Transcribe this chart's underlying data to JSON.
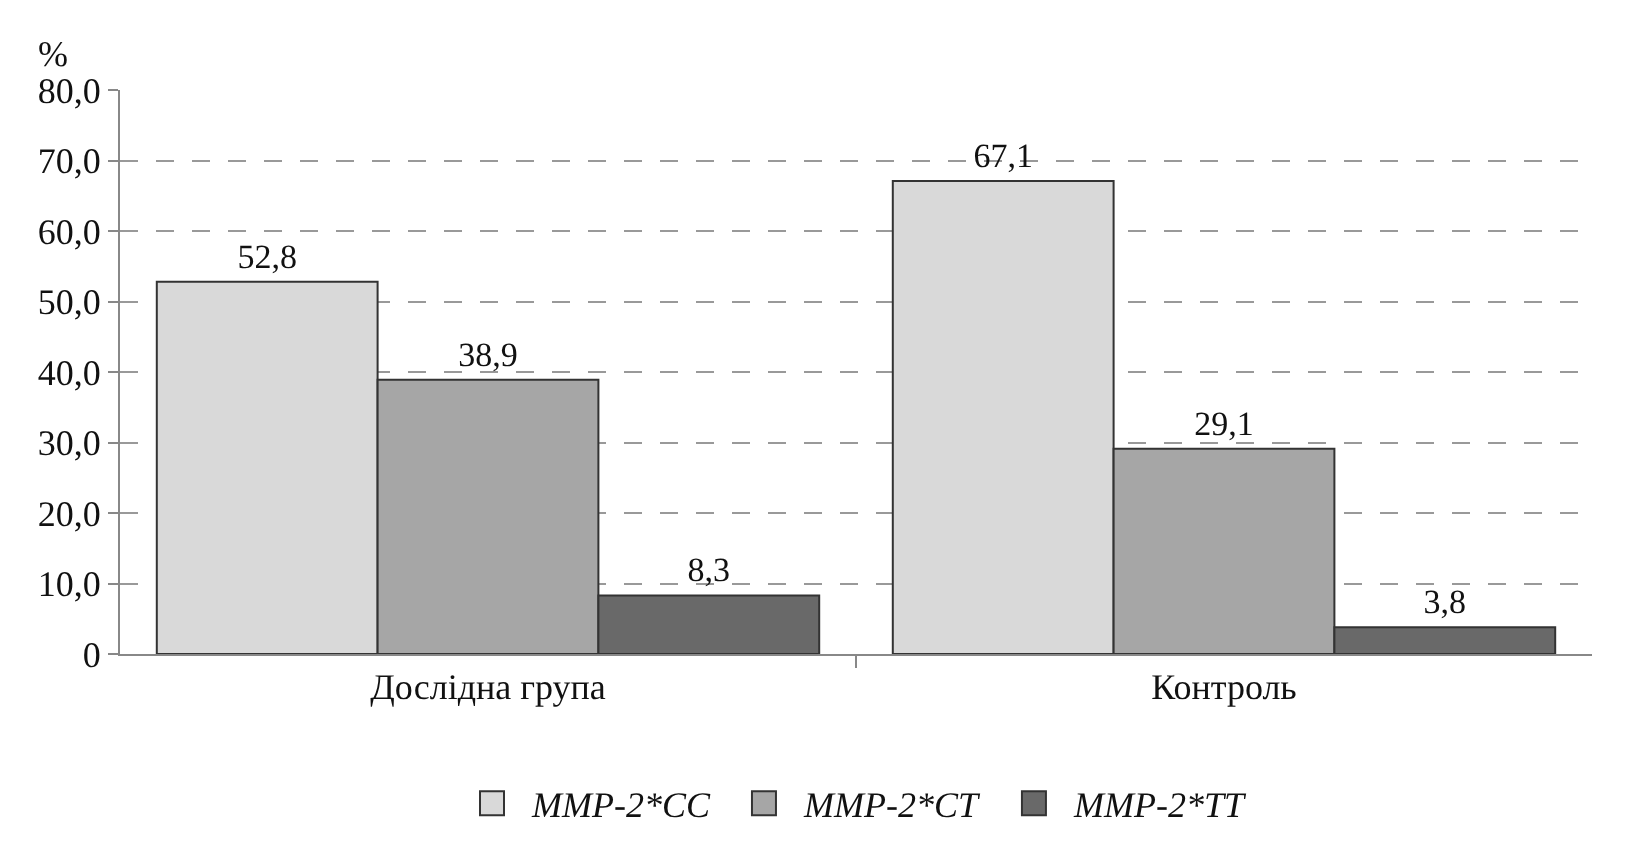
{
  "chart_data": {
    "type": "bar",
    "ylabel": "%",
    "categories": [
      "Дослідна група",
      "Контроль"
    ],
    "series": [
      {
        "name": "MMP-2*CC",
        "color": "#d9d9d9",
        "values": [
          52.8,
          67.1
        ],
        "value_labels": [
          "52,8",
          "67,1"
        ]
      },
      {
        "name": "MMP-2*CT",
        "color": "#a6a6a6",
        "values": [
          38.9,
          29.1
        ],
        "value_labels": [
          "38,9",
          "29,1"
        ]
      },
      {
        "name": "MMP-2*TT",
        "color": "#696969",
        "values": [
          8.3,
          3.8
        ],
        "value_labels": [
          "8,3",
          "3,8"
        ]
      }
    ],
    "ylim": [
      0,
      80
    ],
    "yticks": [
      0,
      {
        "value": 10,
        "label": "10,0"
      },
      {
        "value": 20,
        "label": "20,0"
      },
      {
        "value": 30,
        "label": "30,0"
      },
      {
        "value": 40,
        "label": "40,0"
      },
      {
        "value": 50,
        "label": "50,0"
      },
      {
        "value": 60,
        "label": "60,0"
      },
      {
        "value": 70,
        "label": "70,0"
      },
      {
        "value": 80,
        "label": "80,0"
      }
    ],
    "grid": "y",
    "legend": "bottom"
  }
}
